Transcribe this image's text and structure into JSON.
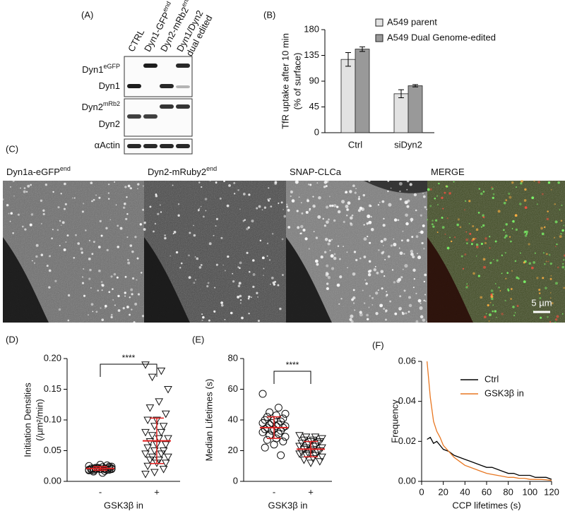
{
  "blot": {
    "panel": "(A)",
    "columns": [
      {
        "text": "CTRL"
      },
      {
        "text": "Dyn1-GFP",
        "sup": "end"
      },
      {
        "text": "Dyn2-mRb2",
        "sup": "end"
      },
      {
        "text": "Dyn1/Dyn2",
        "line2": "dual edited"
      }
    ],
    "rows": [
      {
        "text": "Dyn1",
        "sup": "eGFP"
      },
      {
        "text": "Dyn1"
      },
      {
        "text": "Dyn2",
        "sup": "mRb2"
      },
      {
        "text": "Dyn2"
      },
      {
        "text": "αActin"
      }
    ]
  },
  "micrographs": {
    "panel": "(C)",
    "images": [
      {
        "text": "Dyn1a-eGFP",
        "sup": "end"
      },
      {
        "text": "Dyn2-mRuby2",
        "sup": "end"
      },
      {
        "text": "SNAP-CLCa"
      },
      {
        "text": "MERGE"
      }
    ],
    "scale_bar": "5 µm"
  },
  "chart_data": [
    {
      "type": "bar",
      "panel": "(B)",
      "y_label": [
        "TfR uptake after 10 min",
        "(% of surface)"
      ],
      "categories": [
        "Ctrl",
        "siDyn2"
      ],
      "series": [
        {
          "name": "A549 parent",
          "color": "#e2e2e2",
          "values": [
            128,
            68
          ],
          "errors": [
            12,
            7
          ]
        },
        {
          "name": "A549 Dual Genome-edited",
          "color": "#999999",
          "values": [
            146,
            82
          ],
          "errors": [
            4,
            2
          ]
        }
      ],
      "ylim": [
        0,
        180
      ],
      "yticks": [
        0,
        45,
        90,
        135,
        180
      ]
    },
    {
      "type": "dotplot",
      "panel": "(D)",
      "y_label": [
        "Initiation Densities",
        "(/µm²/min)"
      ],
      "x_label": "GSK3β in",
      "categories": [
        "-",
        "+"
      ],
      "markers": [
        "circle",
        "triangle-down"
      ],
      "summary_color": "#e02020",
      "values": [
        [
          0.019,
          0.021,
          0.022,
          0.02,
          0.023,
          0.018,
          0.024,
          0.02,
          0.021,
          0.019,
          0.022,
          0.025,
          0.017,
          0.02,
          0.021,
          0.023,
          0.016,
          0.022,
          0.02,
          0.019,
          0.026,
          0.021,
          0.018,
          0.02,
          0.022,
          0.024,
          0.014,
          0.021,
          0.019,
          0.027
        ],
        [
          0.19,
          0.18,
          0.17,
          0.15,
          0.13,
          0.12,
          0.11,
          0.1,
          0.1,
          0.09,
          0.09,
          0.08,
          0.08,
          0.075,
          0.07,
          0.07,
          0.065,
          0.06,
          0.06,
          0.055,
          0.05,
          0.05,
          0.045,
          0.045,
          0.04,
          0.04,
          0.035,
          0.035,
          0.03,
          0.03,
          0.025,
          0.02,
          0.015,
          0.012
        ]
      ],
      "means": [
        0.021,
        0.066
      ],
      "sd": [
        0.003,
        0.037
      ],
      "significance": "****",
      "ylim": [
        0,
        0.2
      ],
      "yticks": [
        {
          "value": 0,
          "label": "0.00"
        },
        {
          "value": 0.05,
          "label": "0.05"
        },
        {
          "value": 0.1,
          "label": "0.10"
        },
        {
          "value": 0.15,
          "label": "0.15"
        },
        {
          "value": 0.2,
          "label": "0.20"
        }
      ]
    },
    {
      "type": "dotplot",
      "panel": "(E)",
      "y_label": [
        "Median Lifetimes (s)"
      ],
      "x_label": "GSK3β in",
      "categories": [
        "-",
        "+"
      ],
      "markers": [
        "circle",
        "triangle-down"
      ],
      "summary_color": "#e02020",
      "values": [
        [
          57,
          48,
          45,
          44,
          43,
          42,
          41,
          40,
          40,
          39,
          38,
          38,
          37,
          37,
          36,
          36,
          35,
          35,
          34,
          34,
          33,
          33,
          32,
          31,
          30,
          29,
          28,
          27,
          26,
          24,
          22,
          17
        ],
        [
          30,
          29,
          29,
          28,
          27,
          27,
          26,
          26,
          25,
          25,
          24,
          23,
          23,
          22,
          22,
          21,
          21,
          20,
          20,
          19,
          19,
          18,
          18,
          17,
          17,
          16,
          15,
          14,
          13,
          12
        ]
      ],
      "means": [
        35,
        21
      ],
      "sd": [
        7,
        5
      ],
      "significance": "****",
      "ylim": [
        0,
        80
      ],
      "yticks": [
        0,
        20,
        40,
        60,
        80
      ]
    },
    {
      "type": "line",
      "panel": "(F)",
      "y_label": [
        "Frequency"
      ],
      "x_label": "CCP lifetimes  (s)",
      "x": [
        5,
        8,
        11,
        14,
        17,
        20,
        25,
        30,
        35,
        40,
        45,
        50,
        55,
        60,
        65,
        70,
        75,
        80,
        85,
        90,
        95,
        100,
        105,
        110,
        115,
        120
      ],
      "series": [
        {
          "name": "Ctrl",
          "color": "#000000",
          "values": [
            0.021,
            0.022,
            0.019,
            0.02,
            0.018,
            0.016,
            0.015,
            0.013,
            0.012,
            0.011,
            0.01,
            0.009,
            0.008,
            0.007,
            0.007,
            0.006,
            0.005,
            0.004,
            0.004,
            0.003,
            0.003,
            0.003,
            0.002,
            0.002,
            0.002,
            0.001
          ]
        },
        {
          "name": "GSK3β in",
          "color": "#e87722",
          "values": [
            0.06,
            0.042,
            0.03,
            0.025,
            0.022,
            0.018,
            0.015,
            0.012,
            0.01,
            0.008,
            0.007,
            0.006,
            0.005,
            0.004,
            0.0035,
            0.003,
            0.0025,
            0.002,
            0.002,
            0.0015,
            0.0015,
            0.001,
            0.001,
            0.001,
            0.0008,
            0.0005
          ]
        }
      ],
      "xlim": [
        0,
        120
      ],
      "xticks": [
        0,
        20,
        40,
        60,
        80,
        100,
        120
      ],
      "ylim": [
        0,
        0.06
      ],
      "yticks": [
        {
          "value": 0,
          "label": "0.00"
        },
        {
          "value": 0.02,
          "label": "0.02"
        },
        {
          "value": 0.04,
          "label": "0.04"
        },
        {
          "value": 0.06,
          "label": "0.06"
        }
      ]
    }
  ]
}
